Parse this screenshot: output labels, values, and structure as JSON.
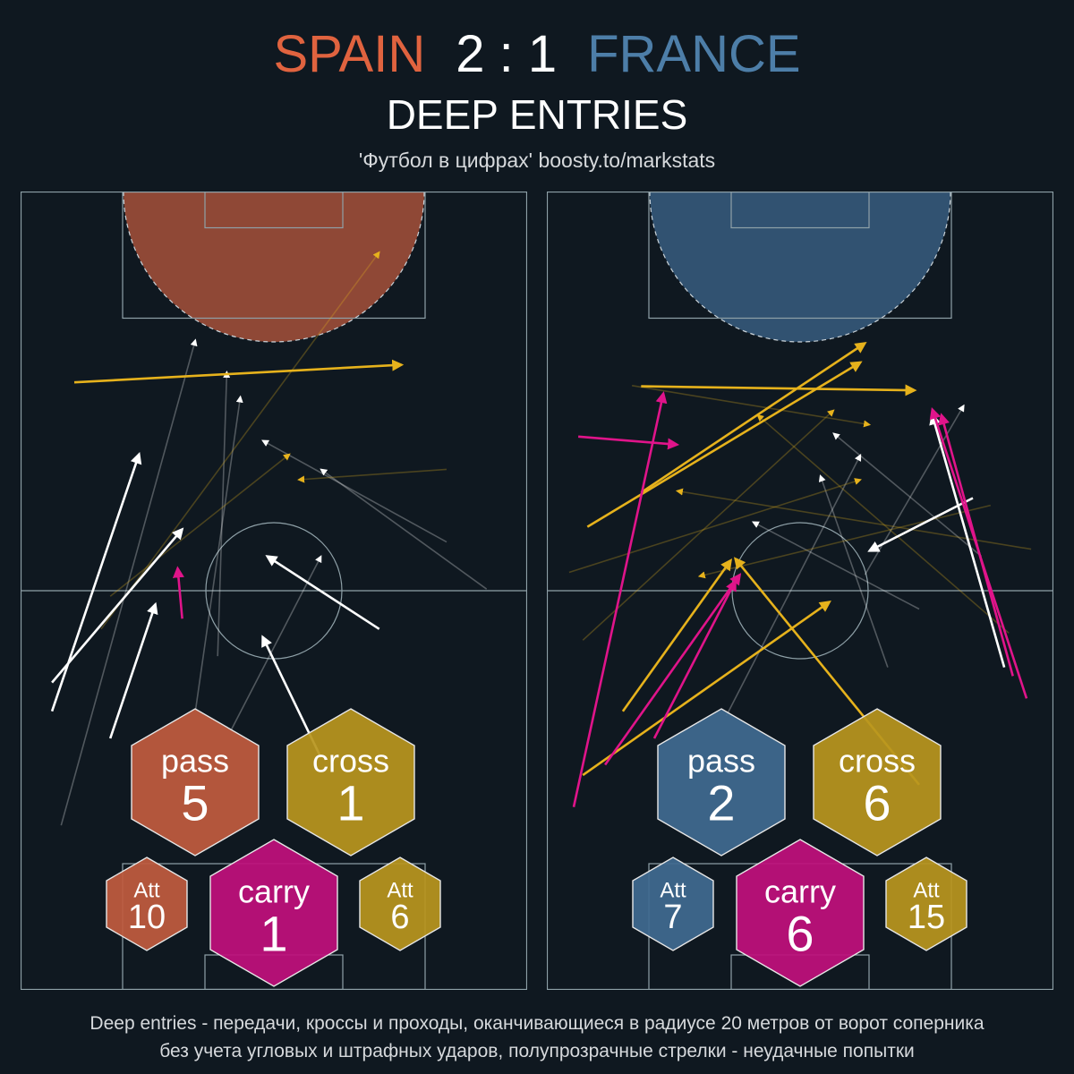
{
  "header": {
    "home_team": "SPAIN",
    "score": "2 : 1",
    "away_team": "FRANCE",
    "title": "DEEP ENTRIES",
    "credit": "'Футбол в цифрах' boosty.to/markstats"
  },
  "footnote": {
    "line1": "Deep entries - передачи, кроссы и проходы, оканчивающиеся в радиусе 20 метров от ворот соперника",
    "line2": "без учета угловых и штрафных ударов, полупрозрачные стрелки - неудачные попытки"
  },
  "colors": {
    "background": "#0f1820",
    "pitch_lines": "#8fa1a8",
    "spain": "#c05b3e",
    "france": "#3f6a90",
    "cross": "#b8961e",
    "carry": "#c0107c",
    "pass_arrow": "#ffffff",
    "cross_arrow": "#e6b21c",
    "carry_arrow": "#e0148a"
  },
  "chart_data": [
    {
      "type": "pitch-arrows",
      "team": "SPAIN",
      "zone_color": "#c05b3e",
      "stats": {
        "pass": {
          "label": "pass",
          "value": "5"
        },
        "cross": {
          "label": "cross",
          "value": "1"
        },
        "carry": {
          "label": "carry",
          "value": "1"
        },
        "att_left": {
          "label": "Att",
          "value": "10"
        },
        "att_right": {
          "label": "Att",
          "value": "6"
        }
      },
      "arrows": [
        {
          "kind": "pass",
          "success": true,
          "x0": 6.2,
          "y0": 34.9,
          "x1": 23.4,
          "y1": 67.1
        },
        {
          "kind": "pass",
          "success": true,
          "x0": 17.7,
          "y0": 31.5,
          "x1": 26.6,
          "y1": 48.3
        },
        {
          "kind": "pass",
          "success": true,
          "x0": 6.2,
          "y0": 38.5,
          "x1": 31.9,
          "y1": 57.7
        },
        {
          "kind": "pass",
          "success": true,
          "x0": 70.8,
          "y0": 45.2,
          "x1": 48.7,
          "y1": 54.3
        },
        {
          "kind": "pass",
          "success": true,
          "x0": 59.3,
          "y0": 29.1,
          "x1": 47.8,
          "y1": 44.2
        },
        {
          "kind": "cross",
          "success": true,
          "x0": 10.6,
          "y0": 76.1,
          "x1": 75.2,
          "y1": 78.3
        },
        {
          "kind": "carry",
          "success": true,
          "x0": 31.9,
          "y0": 46.5,
          "x1": 31.0,
          "y1": 52.8
        },
        {
          "kind": "pass",
          "success": false,
          "x0": 8.0,
          "y0": 20.6,
          "x1": 34.5,
          "y1": 81.4
        },
        {
          "kind": "pass",
          "success": false,
          "x0": 34.5,
          "y0": 34.9,
          "x1": 43.4,
          "y1": 74.3
        },
        {
          "kind": "pass",
          "success": false,
          "x0": 41.6,
          "y0": 32.6,
          "x1": 59.3,
          "y1": 54.3
        },
        {
          "kind": "pass",
          "success": false,
          "x0": 92.0,
          "y0": 50.2,
          "x1": 59.3,
          "y1": 65.2
        },
        {
          "kind": "pass",
          "success": false,
          "x0": 84.1,
          "y0": 56.1,
          "x1": 47.8,
          "y1": 68.8
        },
        {
          "kind": "pass",
          "success": false,
          "x0": 38.9,
          "y0": 41.8,
          "x1": 40.7,
          "y1": 77.4
        },
        {
          "kind": "cross",
          "success": false,
          "x0": 15.9,
          "y0": 45.2,
          "x1": 70.8,
          "y1": 92.4
        },
        {
          "kind": "cross",
          "success": false,
          "x0": 17.7,
          "y0": 49.3,
          "x1": 53.1,
          "y1": 67.1
        },
        {
          "kind": "cross",
          "success": false,
          "x0": 84.1,
          "y0": 65.2,
          "x1": 54.9,
          "y1": 63.9
        }
      ]
    },
    {
      "type": "pitch-arrows",
      "team": "FRANCE",
      "zone_color": "#3f6a90",
      "stats": {
        "pass": {
          "label": "pass",
          "value": "2"
        },
        "cross": {
          "label": "cross",
          "value": "6"
        },
        "carry": {
          "label": "carry",
          "value": "6"
        },
        "att_left": {
          "label": "Att",
          "value": "7"
        },
        "att_right": {
          "label": "Att",
          "value": "15"
        }
      },
      "arrows": [
        {
          "kind": "pass",
          "success": true,
          "x0": 90.3,
          "y0": 40.4,
          "x1": 76.1,
          "y1": 72.0
        },
        {
          "kind": "pass",
          "success": true,
          "x0": 84.1,
          "y0": 61.6,
          "x1": 63.7,
          "y1": 55.0
        },
        {
          "kind": "cross",
          "success": true,
          "x0": 8.0,
          "y0": 58.0,
          "x1": 61.9,
          "y1": 78.6
        },
        {
          "kind": "cross",
          "success": true,
          "x0": 18.6,
          "y0": 62.3,
          "x1": 62.8,
          "y1": 81.0
        },
        {
          "kind": "cross",
          "success": true,
          "x0": 18.6,
          "y0": 75.6,
          "x1": 72.6,
          "y1": 75.1
        },
        {
          "kind": "cross",
          "success": true,
          "x0": 7.1,
          "y0": 26.9,
          "x1": 55.8,
          "y1": 48.6
        },
        {
          "kind": "cross",
          "success": true,
          "x0": 15.0,
          "y0": 34.9,
          "x1": 36.3,
          "y1": 53.8
        },
        {
          "kind": "cross",
          "success": true,
          "x0": 73.5,
          "y0": 25.7,
          "x1": 37.2,
          "y1": 54.0
        },
        {
          "kind": "carry",
          "success": true,
          "x0": 5.3,
          "y0": 22.9,
          "x1": 23.0,
          "y1": 74.7
        },
        {
          "kind": "carry",
          "success": true,
          "x0": 11.5,
          "y0": 28.2,
          "x1": 38.1,
          "y1": 52.0
        },
        {
          "kind": "carry",
          "success": true,
          "x0": 21.2,
          "y0": 31.5,
          "x1": 37.2,
          "y1": 51.2
        },
        {
          "kind": "carry",
          "success": true,
          "x0": 6.2,
          "y0": 69.3,
          "x1": 25.7,
          "y1": 68.3
        },
        {
          "kind": "carry",
          "success": true,
          "x0": 94.7,
          "y0": 36.5,
          "x1": 76.1,
          "y1": 72.7
        },
        {
          "kind": "carry",
          "success": true,
          "x0": 92.0,
          "y0": 39.3,
          "x1": 77.9,
          "y1": 72.0
        },
        {
          "kind": "pass",
          "success": false,
          "x0": 35.4,
          "y0": 34.3,
          "x1": 61.9,
          "y1": 67.0
        },
        {
          "kind": "pass",
          "success": false,
          "x0": 67.3,
          "y0": 40.4,
          "x1": 54.0,
          "y1": 64.4
        },
        {
          "kind": "pass",
          "success": false,
          "x0": 85.8,
          "y0": 54.3,
          "x1": 56.6,
          "y1": 69.7
        },
        {
          "kind": "pass",
          "success": false,
          "x0": 73.5,
          "y0": 47.7,
          "x1": 40.7,
          "y1": 58.6
        },
        {
          "kind": "pass",
          "success": false,
          "x0": 62.8,
          "y0": 52.0,
          "x1": 82.3,
          "y1": 73.2
        },
        {
          "kind": "cross",
          "success": false,
          "x0": 4.4,
          "y0": 52.3,
          "x1": 61.9,
          "y1": 63.9
        },
        {
          "kind": "cross",
          "success": false,
          "x0": 7.1,
          "y0": 43.8,
          "x1": 56.6,
          "y1": 72.6
        },
        {
          "kind": "cross",
          "success": false,
          "x0": 95.6,
          "y0": 55.2,
          "x1": 25.7,
          "y1": 62.5
        },
        {
          "kind": "cross",
          "success": false,
          "x0": 91.2,
          "y0": 44.7,
          "x1": 41.6,
          "y1": 72.0
        },
        {
          "kind": "cross",
          "success": false,
          "x0": 16.8,
          "y0": 75.7,
          "x1": 63.7,
          "y1": 70.8
        },
        {
          "kind": "cross",
          "success": false,
          "x0": 87.6,
          "y0": 60.7,
          "x1": 30.1,
          "y1": 51.8
        }
      ]
    }
  ]
}
